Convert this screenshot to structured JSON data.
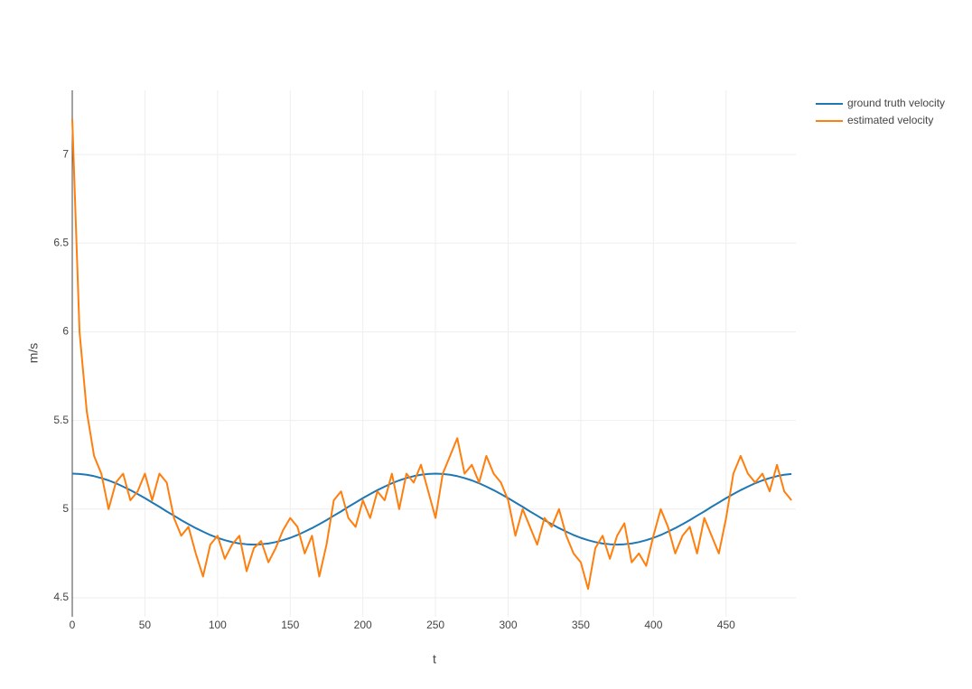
{
  "chart_data": {
    "type": "line",
    "x_label": "t",
    "y_label": "m/s",
    "xlim": [
      0,
      498
    ],
    "ylim": [
      4.393,
      7.362
    ],
    "xticks": [
      0,
      50,
      100,
      150,
      200,
      250,
      300,
      350,
      400,
      450
    ],
    "yticks": [
      4.5,
      5,
      5.5,
      6,
      6.5,
      7
    ],
    "grid": true,
    "legend": "top-right",
    "x": [
      0,
      5,
      10,
      15,
      20,
      25,
      30,
      35,
      40,
      45,
      50,
      55,
      60,
      65,
      70,
      75,
      80,
      85,
      90,
      95,
      100,
      105,
      110,
      115,
      120,
      125,
      130,
      135,
      140,
      145,
      150,
      155,
      160,
      165,
      170,
      175,
      180,
      185,
      190,
      195,
      200,
      205,
      210,
      215,
      220,
      225,
      230,
      235,
      240,
      245,
      250,
      255,
      260,
      265,
      270,
      275,
      280,
      285,
      290,
      295,
      300,
      305,
      310,
      315,
      320,
      325,
      330,
      335,
      340,
      345,
      350,
      355,
      360,
      365,
      370,
      375,
      380,
      385,
      390,
      395,
      400,
      405,
      410,
      415,
      420,
      425,
      430,
      435,
      440,
      445,
      450,
      455,
      460,
      465,
      470,
      475,
      480,
      485,
      490,
      495
    ],
    "series": [
      {
        "name": "ground truth velocity",
        "color": "#1f77b4",
        "values": [
          5.2,
          5.198,
          5.194,
          5.186,
          5.175,
          5.162,
          5.146,
          5.127,
          5.107,
          5.085,
          5.062,
          5.037,
          5.013,
          4.987,
          4.963,
          4.938,
          4.915,
          4.893,
          4.873,
          4.854,
          4.838,
          4.825,
          4.814,
          4.806,
          4.802,
          4.8,
          4.802,
          4.806,
          4.814,
          4.825,
          4.838,
          4.854,
          4.873,
          4.893,
          4.915,
          4.938,
          4.963,
          4.987,
          5.013,
          5.037,
          5.062,
          5.085,
          5.107,
          5.127,
          5.146,
          5.162,
          5.175,
          5.186,
          5.194,
          5.198,
          5.2,
          5.198,
          5.194,
          5.186,
          5.175,
          5.162,
          5.146,
          5.127,
          5.107,
          5.085,
          5.062,
          5.037,
          5.013,
          4.987,
          4.963,
          4.938,
          4.915,
          4.893,
          4.873,
          4.854,
          4.838,
          4.825,
          4.814,
          4.806,
          4.802,
          4.8,
          4.802,
          4.806,
          4.814,
          4.825,
          4.838,
          4.854,
          4.873,
          4.893,
          4.915,
          4.938,
          4.963,
          4.987,
          5.013,
          5.037,
          5.062,
          5.085,
          5.107,
          5.127,
          5.146,
          5.162,
          5.175,
          5.186,
          5.194,
          5.198
        ]
      },
      {
        "name": "estimated velocity",
        "color": "#ff7f0e",
        "values": [
          7.2,
          6.0,
          5.55,
          5.3,
          5.2,
          5.0,
          5.15,
          5.2,
          5.05,
          5.1,
          5.2,
          5.05,
          5.2,
          5.15,
          4.95,
          4.85,
          4.9,
          4.75,
          4.62,
          4.8,
          4.85,
          4.72,
          4.8,
          4.85,
          4.65,
          4.78,
          4.82,
          4.7,
          4.78,
          4.88,
          4.95,
          4.9,
          4.75,
          4.85,
          4.62,
          4.8,
          5.05,
          5.1,
          4.95,
          4.9,
          5.05,
          4.95,
          5.1,
          5.05,
          5.2,
          5.0,
          5.2,
          5.15,
          5.25,
          5.1,
          4.95,
          5.2,
          5.3,
          5.4,
          5.2,
          5.25,
          5.15,
          5.3,
          5.2,
          5.15,
          5.05,
          4.85,
          5.0,
          4.9,
          4.8,
          4.95,
          4.9,
          5.0,
          4.85,
          4.75,
          4.7,
          4.55,
          4.78,
          4.85,
          4.72,
          4.85,
          4.92,
          4.7,
          4.75,
          4.68,
          4.85,
          5.0,
          4.9,
          4.75,
          4.85,
          4.9,
          4.75,
          4.95,
          4.85,
          4.75,
          4.95,
          5.2,
          5.3,
          5.2,
          5.15,
          5.2,
          5.1,
          5.25,
          5.1,
          5.05
        ]
      }
    ]
  }
}
